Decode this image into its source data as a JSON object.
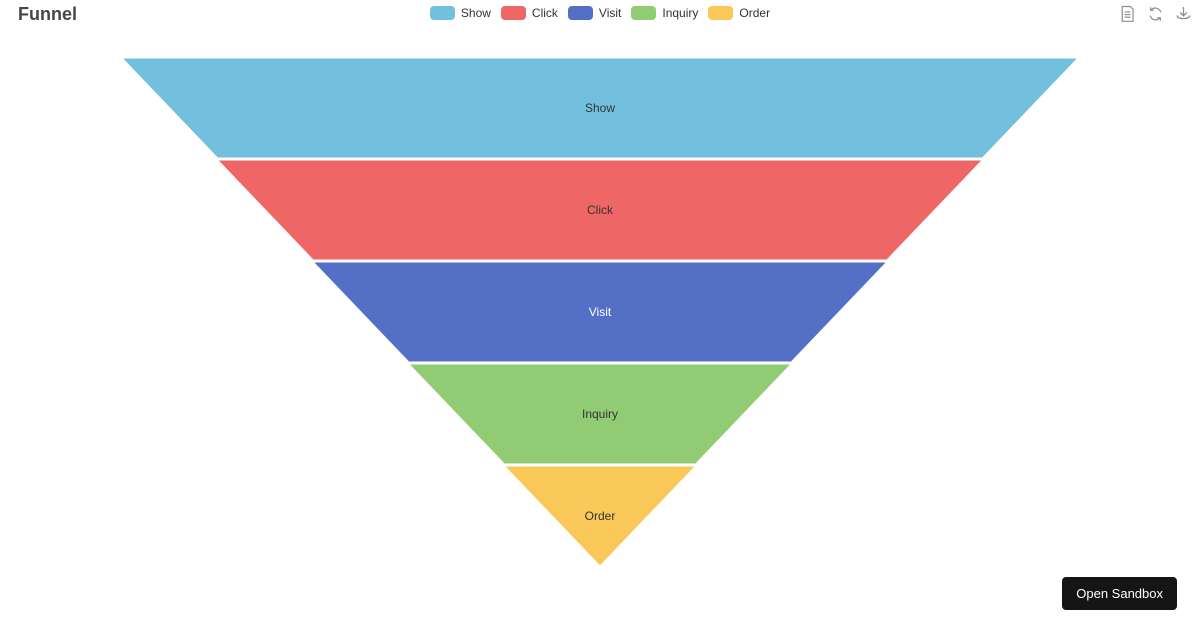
{
  "page": {
    "background": "#ffffff"
  },
  "header": {
    "title": "Funnel",
    "toolbox": {
      "icon_color": "#8d8d8d",
      "icons": [
        "data-view",
        "restore",
        "save-as-image"
      ]
    }
  },
  "legend": {
    "items": [
      {
        "label": "Show",
        "color": "#73C0DE"
      },
      {
        "label": "Click",
        "color": "#EE6666"
      },
      {
        "label": "Visit",
        "color": "#5470C6"
      },
      {
        "label": "Inquiry",
        "color": "#91CC75"
      },
      {
        "label": "Order",
        "color": "#FAC858"
      }
    ]
  },
  "chart_data": {
    "type": "funnel",
    "title": "Funnel",
    "sort": "descending",
    "legend_position": "top-center",
    "legend": [
      "Show",
      "Click",
      "Visit",
      "Inquiry",
      "Order"
    ],
    "value_range": [
      0,
      100
    ],
    "series": [
      {
        "name": "Funnel",
        "data": [
          {
            "name": "Show",
            "value": 100,
            "color": "#73C0DE",
            "label_color": "#333333"
          },
          {
            "name": "Click",
            "value": 80,
            "color": "#EE6666",
            "label_color": "#333333"
          },
          {
            "name": "Visit",
            "value": 60,
            "color": "#5470C6",
            "label_color": "#FFFFFF"
          },
          {
            "name": "Inquiry",
            "value": 40,
            "color": "#91CC75",
            "label_color": "#333333"
          },
          {
            "name": "Order",
            "value": 20,
            "color": "#FAC858",
            "label_color": "#333333"
          }
        ]
      }
    ]
  },
  "sandbox_button": {
    "label": "Open Sandbox",
    "background": "#151515",
    "text_color": "#FFFFFF"
  }
}
